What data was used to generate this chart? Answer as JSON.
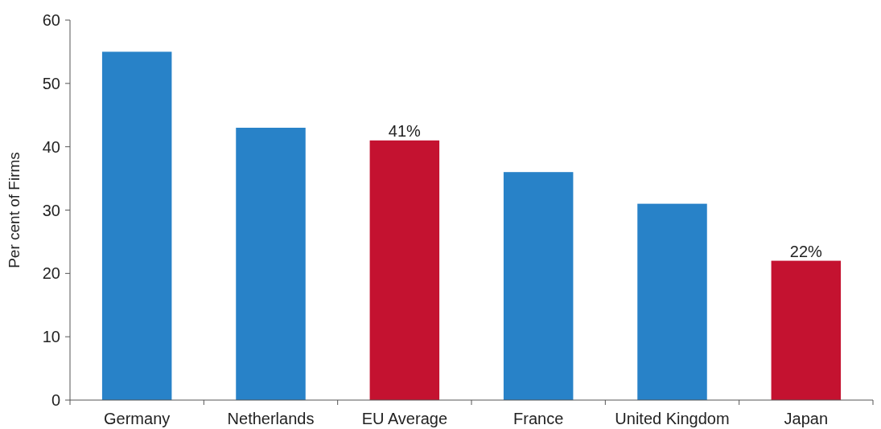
{
  "chart_data": {
    "type": "bar",
    "ylabel": "Per cent of Firms",
    "categories": [
      "Germany",
      "Netherlands",
      "EU Average",
      "France",
      "United Kingdom",
      "Japan"
    ],
    "values": [
      55,
      43,
      41,
      36,
      31,
      22
    ],
    "colors": [
      "#2882c8",
      "#2882c8",
      "#c41230",
      "#2882c8",
      "#2882c8",
      "#c41230"
    ],
    "value_labels": [
      null,
      null,
      "41%",
      null,
      null,
      "22%"
    ],
    "ylim": [
      0,
      60
    ],
    "yticks": [
      0,
      10,
      20,
      30,
      40,
      50,
      60
    ],
    "grid": false
  }
}
